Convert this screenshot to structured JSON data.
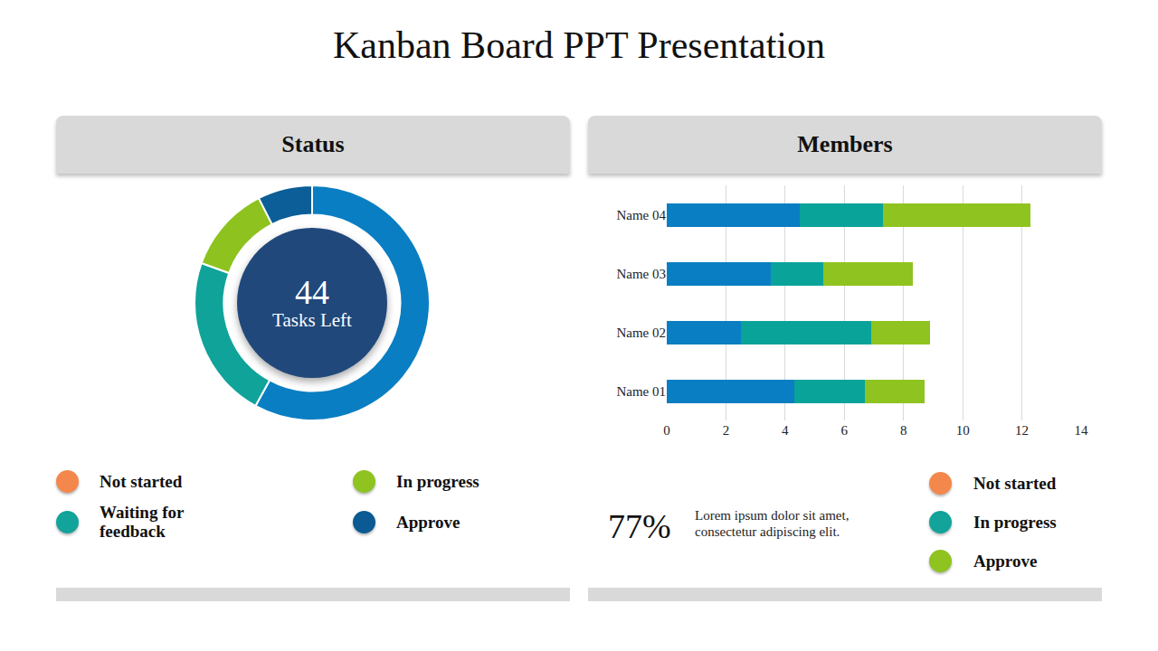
{
  "title": "Kanban Board PPT Presentation",
  "chart_data": [
    {
      "type": "pie",
      "title": "Status",
      "values": [
        58,
        22.5,
        12,
        7.5
      ],
      "colors": [
        "#0a7ec2",
        "#10a39a",
        "#8dc21f",
        "#0b5e97"
      ],
      "center_value": 44,
      "center_label": "Tasks Left",
      "center_color": "#20487b"
    },
    {
      "type": "bar",
      "title": "Members",
      "orientation": "horizontal",
      "stacked": true,
      "grid": true,
      "categories": [
        "Name 01",
        "Name 02",
        "Name 03",
        "Name 04"
      ],
      "series": [
        {
          "color": "#0a7ec2",
          "values": [
            4.3,
            2.5,
            3.5,
            4.5
          ]
        },
        {
          "color": "#0aa39a",
          "values": [
            2.4,
            4.4,
            1.8,
            2.8
          ]
        },
        {
          "color": "#8fc31f",
          "values": [
            2.0,
            2.0,
            3.0,
            5.0
          ]
        }
      ],
      "xlim": [
        0,
        14
      ],
      "xticks": [
        0,
        2,
        4,
        6,
        8,
        10,
        12,
        14
      ]
    }
  ],
  "status_legend": [
    {
      "label": "Not started",
      "color": "#f4874b"
    },
    {
      "label": "Waiting for feedback",
      "color": "#12a39a"
    },
    {
      "label": "In progress",
      "color": "#8fc320"
    },
    {
      "label": "Approve",
      "color": "#0b5a93"
    }
  ],
  "members_legend": [
    {
      "label": "Not started",
      "color": "#f4874b"
    },
    {
      "label": "In progress",
      "color": "#12a39a"
    },
    {
      "label": "Approve",
      "color": "#8fc320"
    }
  ],
  "stat": "77%",
  "stat_text": [
    "Lorem ipsum dolor sit amet,",
    "consectetur adipiscing elit."
  ]
}
